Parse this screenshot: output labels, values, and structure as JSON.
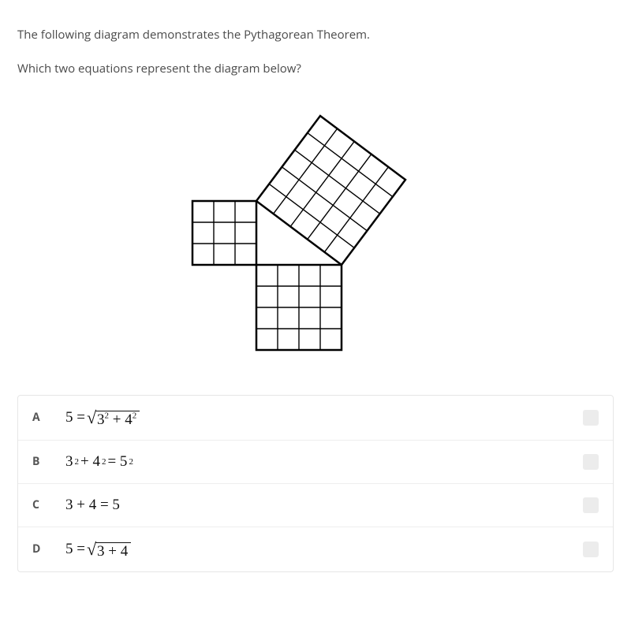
{
  "intro": "The following diagram demonstrates the Pythagorean Theorem.",
  "question": "Which two equations represent the diagram below?",
  "diagram": {
    "cell": 27,
    "stroke": "#000000",
    "stroke_width": 1.4,
    "outer_stroke_width": 2.5,
    "squares": {
      "a": {
        "cols": 3,
        "rows": 3
      },
      "b": {
        "cols": 4,
        "rows": 4
      },
      "c": {
        "cols": 5,
        "rows": 5
      }
    }
  },
  "options": [
    {
      "letter": "A",
      "kind": "sqrt",
      "prefix": "5 = ",
      "radicand_parts": [
        "3",
        "2",
        " + 4",
        "2"
      ]
    },
    {
      "letter": "B",
      "kind": "plain",
      "parts": [
        "3",
        "2",
        " + 4",
        "2",
        " = 5",
        "2"
      ]
    },
    {
      "letter": "C",
      "kind": "text",
      "text": "3 + 4 = 5"
    },
    {
      "letter": "D",
      "kind": "sqrt",
      "prefix": "5 = ",
      "radicand_text": "3 + 4"
    }
  ]
}
